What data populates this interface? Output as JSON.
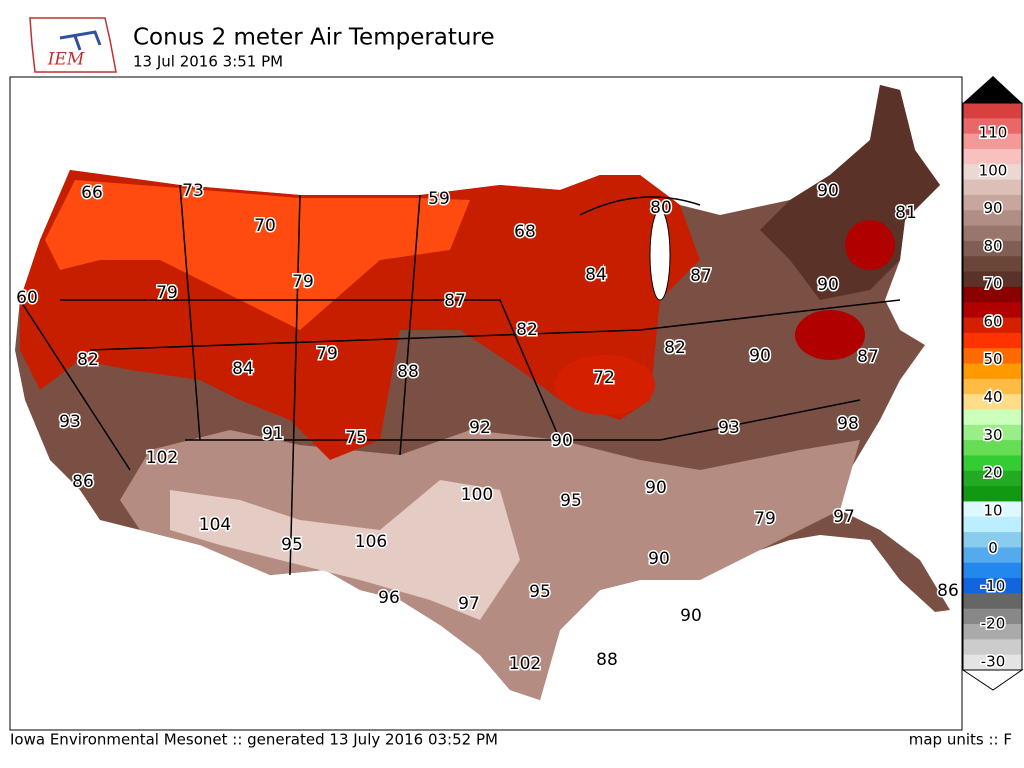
{
  "header": {
    "logo": "IEM",
    "title": "Conus 2 meter Air Temperature",
    "subtitle": "13 Jul 2016 3:51 PM"
  },
  "map": {
    "labels": [
      66,
      73,
      70,
      59,
      68,
      80,
      90,
      81,
      60,
      79,
      79,
      87,
      84,
      87,
      90,
      82,
      84,
      79,
      88,
      82,
      82,
      90,
      87,
      72,
      93,
      91,
      75,
      92,
      90,
      93,
      98,
      102,
      86,
      100,
      95,
      90,
      79,
      97,
      104,
      95,
      106,
      90,
      86,
      96,
      97,
      95,
      90,
      102,
      88
    ]
  },
  "colorbar": {
    "labels": [
      110,
      100,
      90,
      80,
      70,
      60,
      50,
      40,
      30,
      20,
      10,
      0,
      -10,
      -20,
      -30
    ]
  },
  "footer": {
    "credit": "Iowa Environmental Mesonet :: generated 13 July 2016 03:52 PM",
    "units": "map units :: F"
  }
}
